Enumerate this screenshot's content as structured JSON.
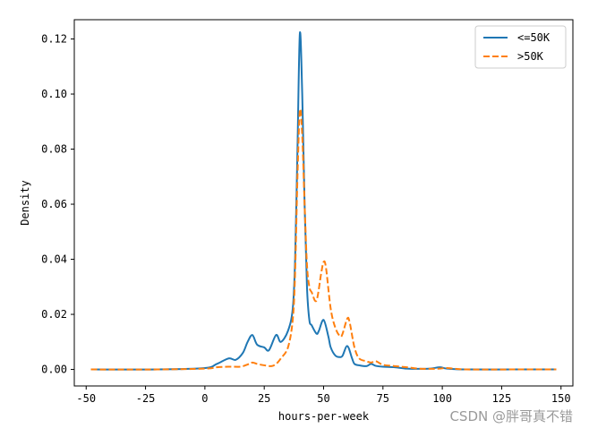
{
  "chart_data": {
    "type": "line",
    "title": "",
    "xlabel": "hours-per-week",
    "ylabel": "Density",
    "xlim": [
      -55,
      155
    ],
    "ylim": [
      -0.006,
      0.127
    ],
    "x_ticks": [
      -50,
      -25,
      0,
      25,
      50,
      75,
      100,
      125,
      150
    ],
    "x_tick_labels": [
      "-50",
      "-25",
      "0",
      "25",
      "50",
      "75",
      "100",
      "125",
      "150"
    ],
    "y_ticks": [
      0.0,
      0.02,
      0.04,
      0.06,
      0.08,
      0.1,
      0.12
    ],
    "y_tick_labels": [
      "0.00",
      "0.02",
      "0.04",
      "0.06",
      "0.08",
      "0.10",
      "0.12"
    ],
    "grid": false,
    "legend_position": "top-right",
    "series": [
      {
        "name": "<=50K",
        "color": "#1f77b4",
        "style": "solid",
        "x": [
          -48,
          -20,
          0,
          5,
          10,
          13,
          16,
          18,
          20,
          22,
          25,
          27,
          30,
          32,
          35,
          37,
          38,
          39,
          40,
          41,
          42,
          43,
          44,
          45,
          47,
          48,
          50,
          52,
          53,
          55,
          57,
          58,
          60,
          62,
          63,
          65,
          68,
          70,
          72,
          75,
          80,
          85,
          90,
          95,
          99,
          102,
          110,
          130,
          148
        ],
        "y": [
          0.0,
          0.0,
          0.0005,
          0.002,
          0.004,
          0.0035,
          0.006,
          0.01,
          0.0125,
          0.009,
          0.008,
          0.007,
          0.0125,
          0.01,
          0.014,
          0.022,
          0.04,
          0.08,
          0.122,
          0.1,
          0.06,
          0.03,
          0.018,
          0.016,
          0.013,
          0.014,
          0.018,
          0.012,
          0.008,
          0.005,
          0.0045,
          0.005,
          0.0085,
          0.004,
          0.002,
          0.0015,
          0.0012,
          0.002,
          0.0013,
          0.001,
          0.0008,
          0.0003,
          0.0002,
          0.0003,
          0.0008,
          0.0003,
          0.0,
          0.0,
          0.0
        ]
      },
      {
        "name": ">50K",
        "color": "#ff7f0e",
        "style": "dashed",
        "x": [
          -48,
          -20,
          0,
          5,
          10,
          15,
          18,
          20,
          22,
          25,
          28,
          30,
          32,
          35,
          37,
          38,
          39,
          40,
          41,
          42,
          43,
          44,
          45,
          47,
          49,
          50,
          51,
          53,
          55,
          57,
          58,
          60,
          61,
          63,
          65,
          68,
          70,
          72,
          75,
          80,
          85,
          90,
          95,
          99,
          102,
          110,
          130,
          148
        ],
        "y": [
          0.0,
          0.0,
          0.0003,
          0.0008,
          0.001,
          0.001,
          0.0018,
          0.0025,
          0.002,
          0.0015,
          0.0012,
          0.002,
          0.004,
          0.008,
          0.018,
          0.035,
          0.07,
          0.094,
          0.085,
          0.06,
          0.038,
          0.03,
          0.028,
          0.025,
          0.035,
          0.039,
          0.037,
          0.022,
          0.015,
          0.012,
          0.013,
          0.0185,
          0.017,
          0.008,
          0.004,
          0.003,
          0.0025,
          0.003,
          0.0017,
          0.0012,
          0.0008,
          0.0003,
          0.0002,
          0.0003,
          0.0005,
          0.0,
          0.0,
          0.0
        ]
      }
    ]
  },
  "watermark": "CSDN @胖哥真不错"
}
